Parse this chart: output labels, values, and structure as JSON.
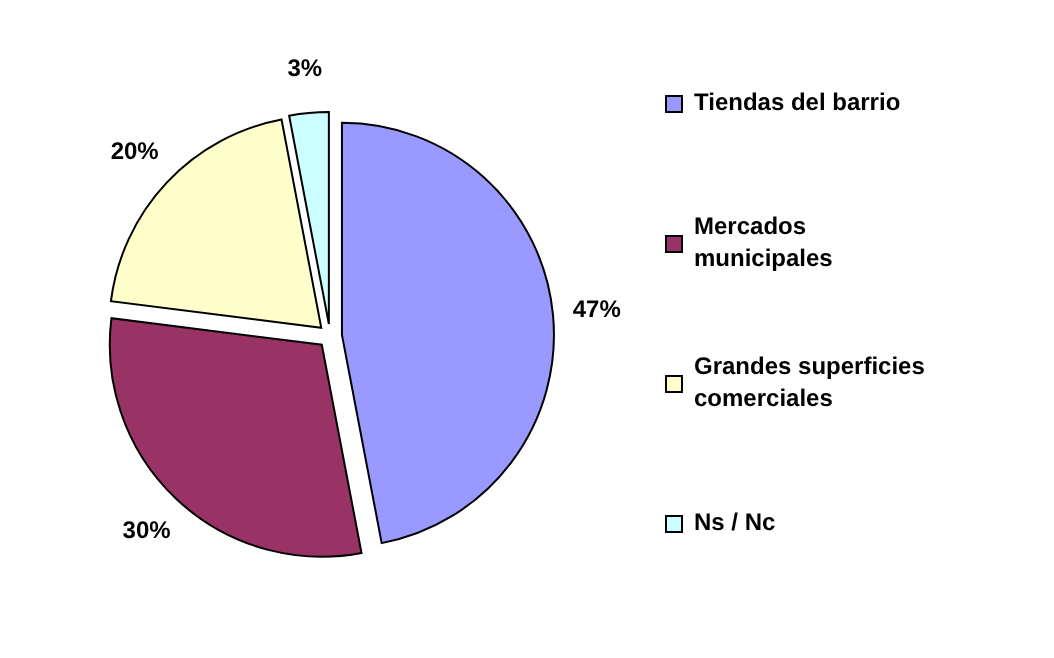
{
  "chart_data": {
    "type": "pie",
    "categories": [
      "Tiendas del barrio",
      "Mercados municipales",
      "Grandes superficies comerciales",
      "Ns / Nc"
    ],
    "values": [
      47,
      30,
      20,
      3
    ],
    "colors": [
      "#9999ff",
      "#993366",
      "#ffffcc",
      "#ccffff"
    ],
    "value_labels": [
      "47%",
      "30%",
      "20%",
      "3%"
    ],
    "legend": "right"
  }
}
